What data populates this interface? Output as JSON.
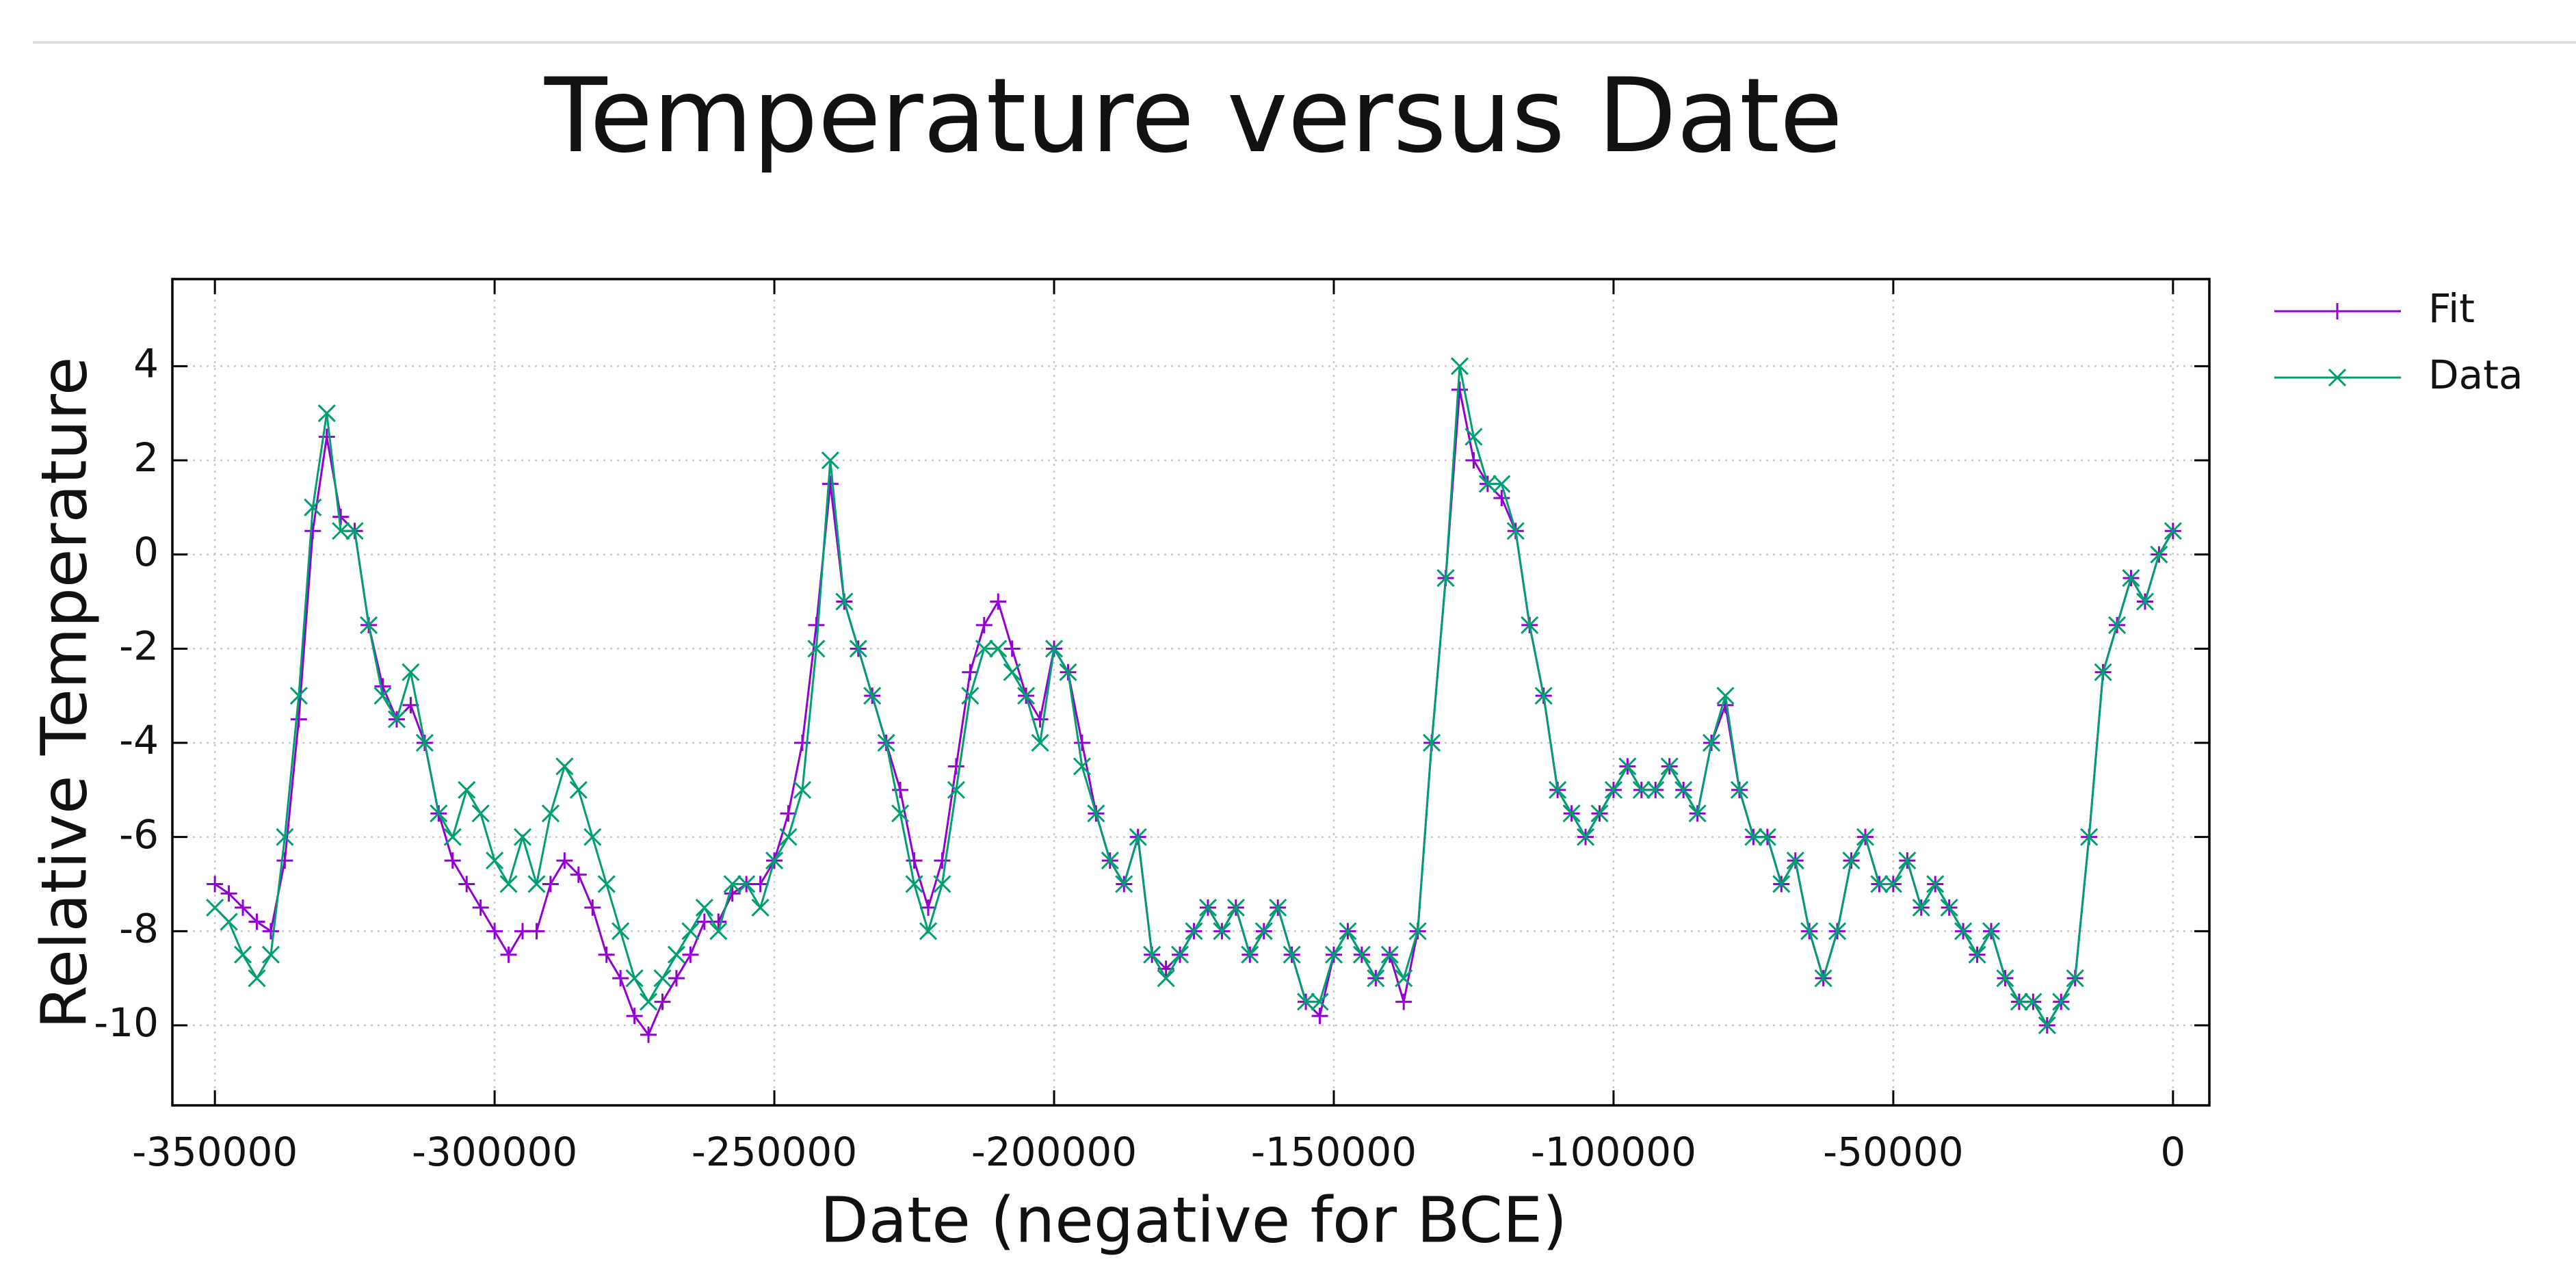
{
  "chart_data": {
    "type": "line",
    "title": "Temperature versus Date",
    "x_label": "Date (negative for BCE)",
    "y_label": "Relative Temperature",
    "x": [
      -350000,
      -347500,
      -345000,
      -342500,
      -340000,
      -337500,
      -335000,
      -332500,
      -330000,
      -327500,
      -325000,
      -322500,
      -320000,
      -317500,
      -315000,
      -312500,
      -310000,
      -307500,
      -305000,
      -302500,
      -300000,
      -297500,
      -295000,
      -292500,
      -290000,
      -287500,
      -285000,
      -282500,
      -280000,
      -277500,
      -275000,
      -272500,
      -270000,
      -267500,
      -265000,
      -262500,
      -260000,
      -257500,
      -255000,
      -252500,
      -250000,
      -247500,
      -245000,
      -242500,
      -240000,
      -237500,
      -235000,
      -232500,
      -230000,
      -227500,
      -225000,
      -222500,
      -220000,
      -217500,
      -215000,
      -212500,
      -210000,
      -207500,
      -205000,
      -202500,
      -200000,
      -197500,
      -195000,
      -192500,
      -190000,
      -187500,
      -185000,
      -182500,
      -180000,
      -177500,
      -175000,
      -172500,
      -170000,
      -167500,
      -165000,
      -162500,
      -160000,
      -157500,
      -155000,
      -152500,
      -150000,
      -147500,
      -145000,
      -142500,
      -140000,
      -137500,
      -135000,
      -132500,
      -130000,
      -127500,
      -125000,
      -122500,
      -120000,
      -117500,
      -115000,
      -112500,
      -110000,
      -107500,
      -105000,
      -102500,
      -100000,
      -97500,
      -95000,
      -92500,
      -90000,
      -87500,
      -85000,
      -82500,
      -80000,
      -77500,
      -75000,
      -72500,
      -70000,
      -67500,
      -65000,
      -62500,
      -60000,
      -57500,
      -55000,
      -52500,
      -50000,
      -47500,
      -45000,
      -42500,
      -40000,
      -37500,
      -35000,
      -32500,
      -30000,
      -27500,
      -25000,
      -22500,
      -20000,
      -17500,
      -15000,
      -12500,
      -10000,
      -7500,
      -5000,
      -2500,
      0
    ],
    "series": [
      {
        "name": "Fit",
        "color": "#9400d3",
        "marker": "+",
        "values": [
          -7,
          -7.2,
          -7.5,
          -7.8,
          -8,
          -6.5,
          -3.5,
          0.5,
          2.5,
          0.8,
          0.5,
          -1.5,
          -2.8,
          -3.5,
          -3.2,
          -4,
          -5.5,
          -6.5,
          -7,
          -7.5,
          -8,
          -8.5,
          -8,
          -8,
          -7,
          -6.5,
          -6.8,
          -7.5,
          -8.5,
          -9,
          -9.8,
          -10.2,
          -9.5,
          -9,
          -8.5,
          -7.8,
          -7.8,
          -7.2,
          -7,
          -7,
          -6.5,
          -5.5,
          -4,
          -1.5,
          1.5,
          -1,
          -2,
          -3,
          -4,
          -5,
          -6.5,
          -7.5,
          -6.5,
          -4.5,
          -2.5,
          -1.5,
          -1,
          -2,
          -3,
          -3.5,
          -2,
          -2.5,
          -4,
          -5.5,
          -6.5,
          -7,
          -6,
          -8.5,
          -8.8,
          -8.5,
          -8,
          -7.5,
          -8,
          -7.5,
          -8.5,
          -8,
          -7.5,
          -8.5,
          -9.5,
          -9.8,
          -8.5,
          -8,
          -8.5,
          -9,
          -8.5,
          -9.5,
          -8,
          -4,
          -0.5,
          3.5,
          2,
          1.5,
          1.2,
          0.5,
          -1.5,
          -3,
          -5,
          -5.5,
          -6,
          -5.5,
          -5,
          -4.5,
          -5,
          -5,
          -4.5,
          -5,
          -5.5,
          -4,
          -3.2,
          -5,
          -6,
          -6,
          -7,
          -6.5,
          -8,
          -9,
          -8,
          -6.5,
          -6,
          -7,
          -7,
          -6.5,
          -7.5,
          -7,
          -7.5,
          -8,
          -8.5,
          -8,
          -9,
          -9.5,
          -9.5,
          -10,
          -9.5,
          -9,
          -6,
          -2.5,
          -1.5,
          -0.5,
          -1,
          0,
          0.5
        ]
      },
      {
        "name": "Data",
        "color": "#009e73",
        "marker": "x",
        "values": [
          -7.5,
          -7.8,
          -8.5,
          -9,
          -8.5,
          -6,
          -3,
          1,
          3,
          0.5,
          0.5,
          -1.5,
          -3,
          -3.5,
          -2.5,
          -4,
          -5.5,
          -6,
          -5,
          -5.5,
          -6.5,
          -7,
          -6,
          -7,
          -5.5,
          -4.5,
          -5,
          -6,
          -7,
          -8,
          -9,
          -9.5,
          -9,
          -8.5,
          -8,
          -7.5,
          -8,
          -7,
          -7,
          -7.5,
          -6.5,
          -6,
          -5,
          -2,
          2,
          -1,
          -2,
          -3,
          -4,
          -5.5,
          -7,
          -8,
          -7,
          -5,
          -3,
          -2,
          -2,
          -2.5,
          -3,
          -4,
          -2,
          -2.5,
          -4.5,
          -5.5,
          -6.5,
          -7,
          -6,
          -8.5,
          -9,
          -8.5,
          -8,
          -7.5,
          -8,
          -7.5,
          -8.5,
          -8,
          -7.5,
          -8.5,
          -9.5,
          -9.5,
          -8.5,
          -8,
          -8.5,
          -9,
          -8.5,
          -9,
          -8,
          -4,
          -0.5,
          4,
          2.5,
          1.5,
          1.5,
          0.5,
          -1.5,
          -3,
          -5,
          -5.5,
          -6,
          -5.5,
          -5,
          -4.5,
          -5,
          -5,
          -4.5,
          -5,
          -5.5,
          -4,
          -3,
          -5,
          -6,
          -6,
          -7,
          -6.5,
          -8,
          -9,
          -8,
          -6.5,
          -6,
          -7,
          -7,
          -6.5,
          -7.5,
          -7,
          -7.5,
          -8,
          -8.5,
          -8,
          -9,
          -9.5,
          -9.5,
          -10,
          -9.5,
          -9,
          -6,
          -2.5,
          -1.5,
          -0.5,
          -1,
          0,
          0.5
        ]
      }
    ],
    "xlim": [
      -357600,
      6500
    ],
    "ylim": [
      -11.7,
      5.85
    ],
    "xticks": [
      -350000,
      -300000,
      -250000,
      -200000,
      -150000,
      -100000,
      -50000,
      0
    ],
    "yticks": [
      -10,
      -8,
      -6,
      -4,
      -2,
      0,
      2,
      4
    ],
    "grid": true,
    "legend": "outside top right"
  }
}
